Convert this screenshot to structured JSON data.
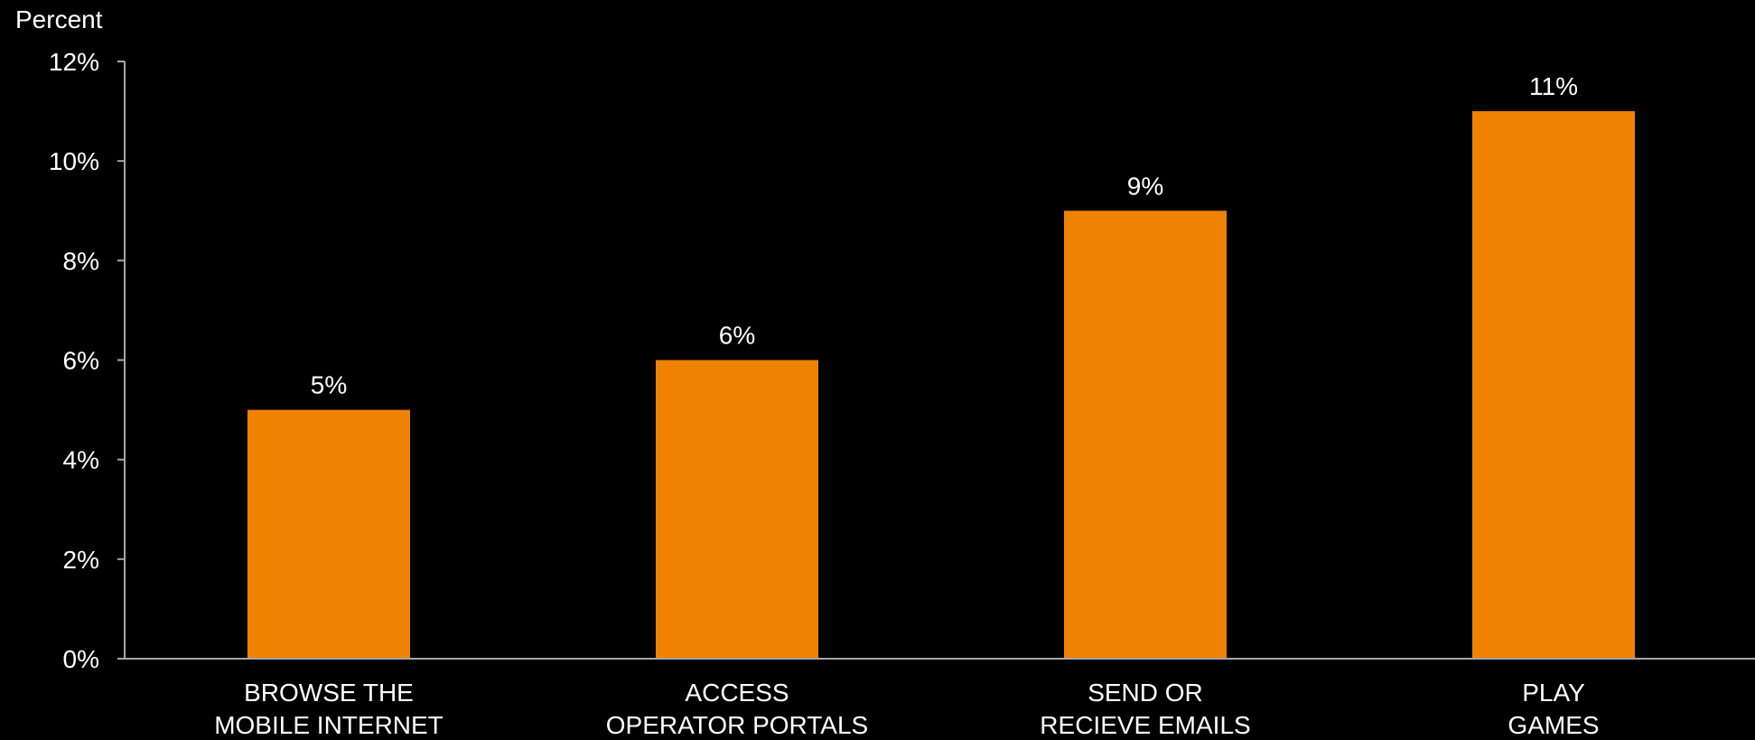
{
  "chart_data": {
    "type": "bar",
    "ylabel": "Percent",
    "categories": [
      [
        "BROWSE THE",
        "MOBILE INTERNET"
      ],
      [
        "ACCESS",
        "OPERATOR PORTALS"
      ],
      [
        "SEND OR",
        "RECIEVE EMAILS"
      ],
      [
        "PLAY",
        "GAMES"
      ]
    ],
    "values": [
      5,
      6,
      9,
      11
    ],
    "data_labels": [
      "5%",
      "6%",
      "9%",
      "11%"
    ],
    "ylim": [
      0,
      12
    ],
    "yticks": [
      0,
      2,
      4,
      6,
      8,
      10,
      12
    ],
    "ytick_labels": [
      "0%",
      "2%",
      "4%",
      "6%",
      "8%",
      "10%",
      "12%"
    ],
    "grid": false,
    "legend": "none"
  },
  "colors": {
    "background": "#000000",
    "bar": "#ef8200",
    "axis": "#a6a6a6",
    "text": "#ffffff"
  }
}
